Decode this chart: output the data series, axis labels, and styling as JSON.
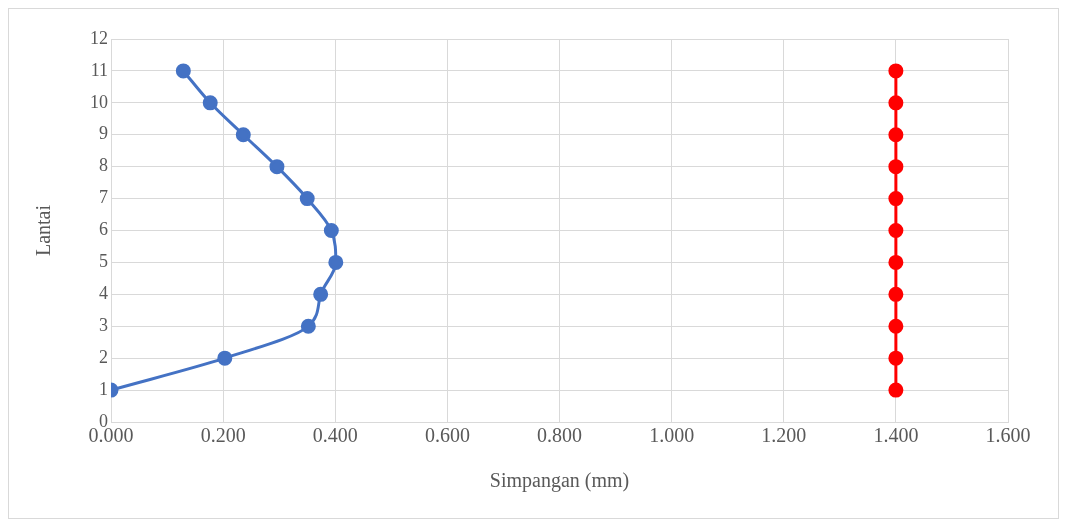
{
  "chart_data": {
    "type": "line",
    "xlabel": "Simpangan (mm)",
    "ylabel": "Lantai",
    "marker": "circle",
    "grid": true,
    "legend": false,
    "xlim": [
      0,
      1.6
    ],
    "xticks": [
      {
        "value": 0,
        "label": "0.000"
      },
      {
        "value": 0.2,
        "label": "0.200"
      },
      {
        "value": 0.4,
        "label": "0.400"
      },
      {
        "value": 0.6,
        "label": "0.600"
      },
      {
        "value": 0.8,
        "label": "0.800"
      },
      {
        "value": 1.0,
        "label": "1.000"
      },
      {
        "value": 1.2,
        "label": "1.200"
      },
      {
        "value": 1.4,
        "label": "1.400"
      },
      {
        "value": 1.6,
        "label": "1.600"
      }
    ],
    "ylim": [
      0,
      12
    ],
    "yticks": [
      0,
      1,
      2,
      3,
      4,
      5,
      6,
      7,
      8,
      9,
      10,
      11,
      12
    ],
    "series": [
      {
        "color": "#4472c4",
        "x": [
          0.0,
          0.203,
          0.352,
          0.374,
          0.401,
          0.393,
          0.35,
          0.296,
          0.236,
          0.177,
          0.129
        ],
        "values": [
          1,
          2,
          3,
          4,
          5,
          6,
          7,
          8,
          9,
          10,
          11
        ]
      },
      {
        "color": "#ff0000",
        "x": [
          1.4,
          1.4,
          1.4,
          1.4,
          1.4,
          1.4,
          1.4,
          1.4,
          1.4,
          1.4,
          1.4
        ],
        "values": [
          1,
          2,
          3,
          4,
          5,
          6,
          7,
          8,
          9,
          10,
          11
        ]
      }
    ]
  }
}
